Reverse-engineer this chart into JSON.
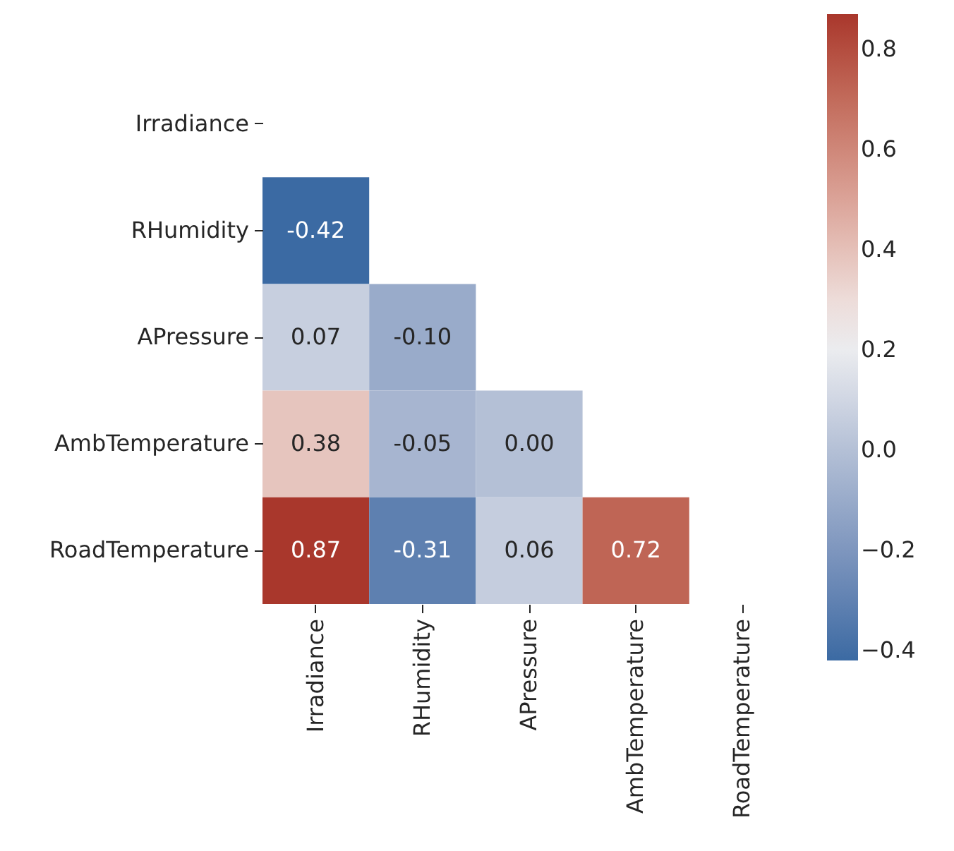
{
  "chart_data": {
    "type": "heatmap",
    "categories": [
      "Irradiance",
      "RHumidity",
      "APressure",
      "AmbTemperature",
      "RoadTemperature"
    ],
    "y_categories": [
      "Irradiance",
      "RHumidity",
      "APressure",
      "AmbTemperature",
      "RoadTemperature"
    ],
    "cells": [
      [
        null,
        null,
        null,
        null,
        null
      ],
      [
        -0.42,
        null,
        null,
        null,
        null
      ],
      [
        0.07,
        -0.1,
        null,
        null,
        null
      ],
      [
        0.38,
        -0.05,
        0.0,
        null,
        null
      ],
      [
        0.87,
        -0.31,
        0.06,
        0.72,
        null
      ]
    ],
    "cell_labels": [
      [
        null,
        null,
        null,
        null,
        null
      ],
      [
        "-0.42",
        null,
        null,
        null,
        null
      ],
      [
        "0.07",
        "-0.10",
        null,
        null,
        null
      ],
      [
        "0.38",
        "-0.05",
        "0.00",
        null,
        null
      ],
      [
        "0.87",
        "-0.31",
        "0.06",
        "0.72",
        null
      ]
    ],
    "colors": [
      "#3b6aa3",
      "#f2f2f2",
      "#a9372c"
    ],
    "clim": [
      -0.42,
      0.87
    ],
    "cticks": [
      {
        "value": -0.4,
        "label": "−0.4"
      },
      {
        "value": -0.2,
        "label": "−0.2"
      },
      {
        "value": 0,
        "label": "0.0"
      },
      {
        "value": 0.2,
        "label": "0.2"
      },
      {
        "value": 0.4,
        "label": "0.4"
      },
      {
        "value": 0.6,
        "label": "0.6"
      },
      {
        "value": 0.8,
        "label": "0.8"
      }
    ]
  }
}
